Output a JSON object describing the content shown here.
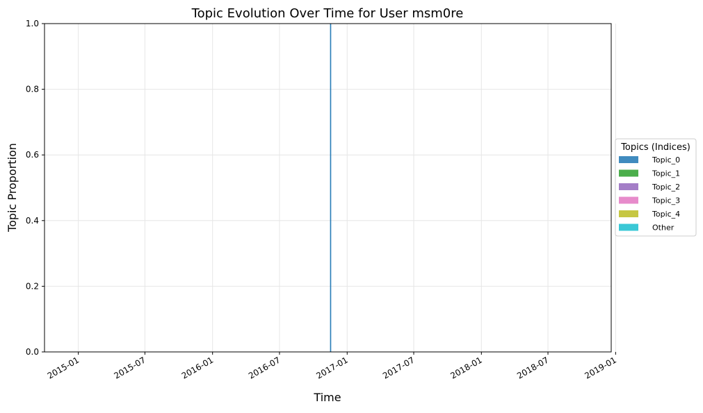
{
  "chart_data": {
    "type": "area",
    "title": "Topic Evolution Over Time for User msm0re",
    "xlabel": "Time",
    "ylabel": "Topic Proportion",
    "ylim": [
      0,
      1
    ],
    "xlim": [
      "2014-10-01",
      "2018-12-20"
    ],
    "grid": true,
    "x_ticks": [
      "2015-01",
      "2015-07",
      "2016-01",
      "2016-07",
      "2017-01",
      "2017-07",
      "2018-01",
      "2018-07",
      "2019-01"
    ],
    "y_ticks": [
      "0.0",
      "0.2",
      "0.4",
      "0.6",
      "0.8",
      "1.0"
    ],
    "x": [
      "2016-11-17"
    ],
    "series": [
      {
        "name": "Topic_0",
        "color": "#1f77b4",
        "values": [
          1.0
        ]
      },
      {
        "name": "Topic_1",
        "color": "#2ca02c",
        "values": [
          0.0
        ]
      },
      {
        "name": "Topic_2",
        "color": "#9467bd",
        "values": [
          0.0
        ]
      },
      {
        "name": "Topic_3",
        "color": "#e377c2",
        "values": [
          0.0
        ]
      },
      {
        "name": "Topic_4",
        "color": "#bcbd22",
        "values": [
          0.0
        ]
      },
      {
        "name": "Other",
        "color": "#17becf",
        "values": [
          0.0
        ]
      }
    ],
    "legend": {
      "title": "Topics (Indices)",
      "position": "right"
    }
  }
}
